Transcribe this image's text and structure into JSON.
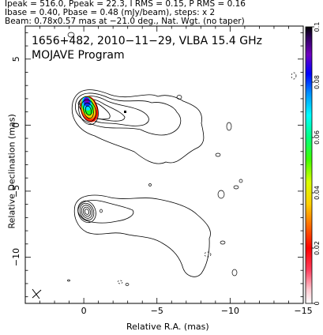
{
  "header": {
    "line1": "Ipeak = 516.0, Ppeak = 22.3, I RMS = 0.15, P RMS = 0.16",
    "line2": "Ibase = 0.40, Pbase = 0.48 (mJy/beam), steps: x 2",
    "line3": "Beam: 0.78x0.57 mas at −21.0 deg., Nat. Wgt. (no taper)"
  },
  "chart_data": {
    "type": "heatmap",
    "title": "1656+482, 2010−11−29, VLBA 15.4 GHz",
    "subtitle": "MOJAVE Program",
    "xlabel": "Relative R.A. (mas)",
    "ylabel": "Relative Declination (mas)",
    "xlim": [
      4,
      -15
    ],
    "ylim": [
      -13.5,
      7.5
    ],
    "xticks": [
      0,
      -5,
      -10,
      -15
    ],
    "yticks": [
      5,
      0,
      -5,
      -10
    ],
    "colorbar": {
      "range": [
        0,
        0.1
      ],
      "ticks": [
        0,
        0.02,
        0.04,
        0.06,
        0.08,
        0.1
      ],
      "tick_labels": [
        "0",
        "0.02",
        "0.04",
        "0.06",
        "0.08",
        "0.1"
      ]
    },
    "core": {
      "x": 0,
      "y": 0
    },
    "components": [
      {
        "name": "core_image",
        "x": 0.0,
        "y": 0.0
      },
      {
        "name": "lower_image",
        "x": 0.2,
        "y": -6.8
      }
    ]
  }
}
